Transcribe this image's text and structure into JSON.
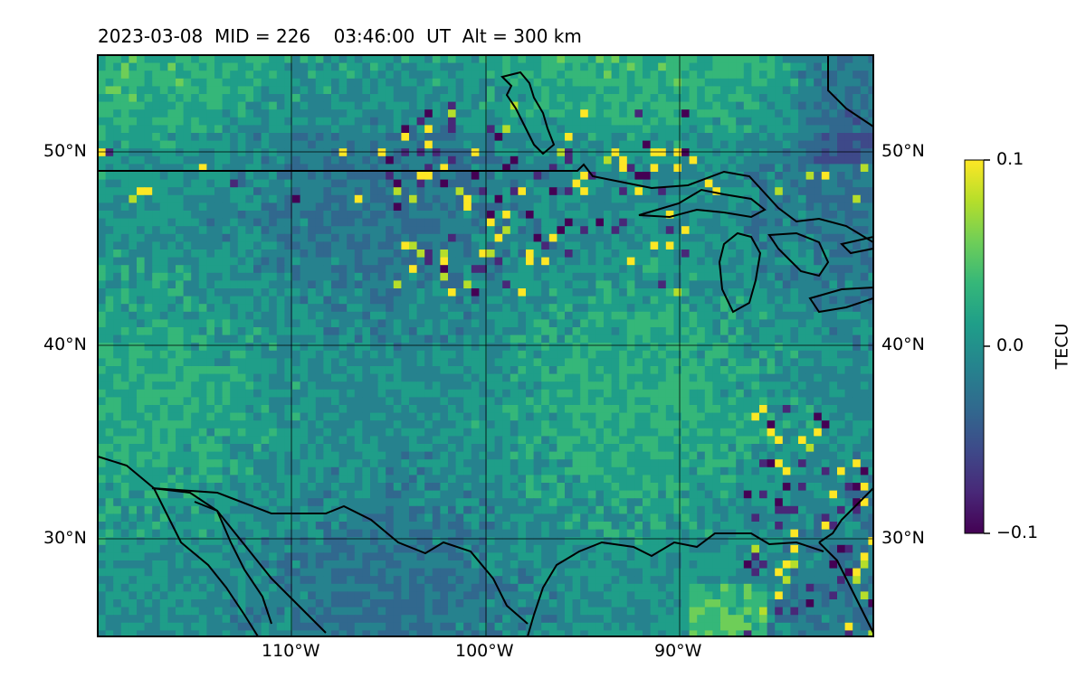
{
  "title": "2023-03-08  MID = 226    03:46:00  UT  Alt = 300 km",
  "lat_labels": [
    "50°N",
    "40°N",
    "30°N"
  ],
  "lon_labels": [
    "110°W",
    "100°W",
    "90°W"
  ],
  "colorbar": {
    "label": "TECU",
    "ticks": [
      "0.1",
      "0.0",
      "−0.1"
    ],
    "min": -0.1,
    "max": 0.1,
    "colormap": [
      "#440154",
      "#482878",
      "#3e4989",
      "#31688e",
      "#26828e",
      "#1f9e89",
      "#35b779",
      "#6ece58",
      "#b5de2b",
      "#fde725"
    ]
  },
  "map": {
    "lon_range": [
      -120,
      -80
    ],
    "lat_range": [
      25,
      55
    ],
    "background": "#2f7e8c",
    "coastline_color": "#000000",
    "gridline_color": "#000000"
  }
}
